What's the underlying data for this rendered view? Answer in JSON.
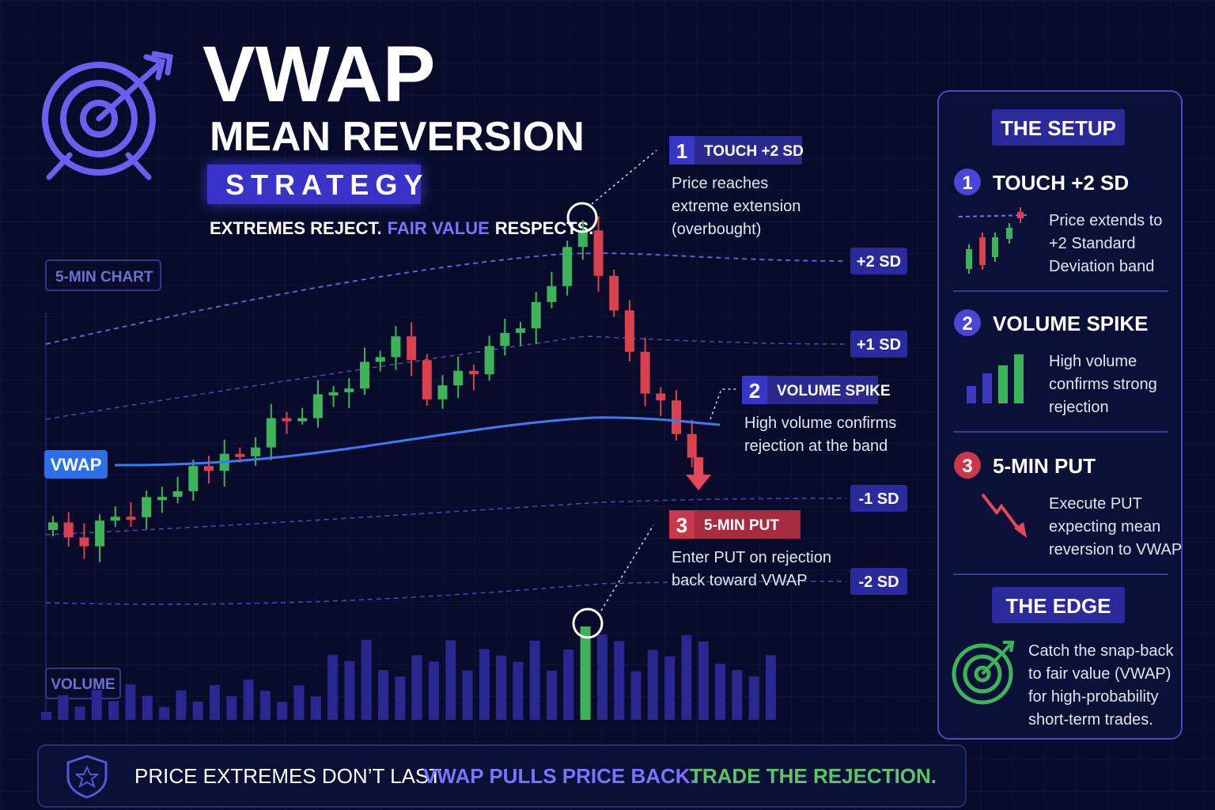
{
  "header": {
    "title": "VWAP",
    "subtitle": "MEAN REVERSION",
    "badge": "STRATEGY",
    "tagline": [
      "EXTREMES REJECT.",
      "FAIR VALUE",
      "RESPECTS."
    ]
  },
  "chart": {
    "label": "5-MIN CHART",
    "volume_label": "VOLUME",
    "vwap_label": "VWAP",
    "bands": [
      "+2 SD",
      "+1 SD",
      "-1 SD",
      "-2 SD"
    ]
  },
  "callouts": [
    {
      "number": "1",
      "title": "TOUCH +2 SD",
      "lines": [
        "Price reaches",
        "extreme extension",
        "(overbought)"
      ]
    },
    {
      "number": "2",
      "title": "VOLUME SPIKE",
      "lines": [
        "High volume confirms",
        "rejection at the band"
      ]
    },
    {
      "number": "3",
      "title": "5-MIN PUT",
      "lines": [
        "Enter PUT on rejection",
        "back toward VWAP"
      ]
    }
  ],
  "panel": {
    "title": "THE SETUP",
    "steps": [
      {
        "number": "1",
        "title": "TOUCH +2 SD",
        "lines": [
          "Price extends to",
          "+2 Standard",
          "Deviation band"
        ]
      },
      {
        "number": "2",
        "title": "VOLUME SPIKE",
        "lines": [
          "High volume",
          "confirms strong",
          "rejection"
        ]
      },
      {
        "number": "3",
        "title": "5-MIN PUT",
        "lines": [
          "Execute PUT",
          "expecting mean",
          "reversion to VWAP"
        ]
      }
    ],
    "edge_title": "THE EDGE",
    "edge_lines": [
      "Catch the snap-back",
      "to fair value (VWAP)",
      "for high-probability",
      "short-term trades."
    ]
  },
  "footer": [
    "PRICE EXTREMES DON’T LAST.",
    "VWAP PULLS PRICE BACK.",
    "TRADE THE REJECTION."
  ]
}
